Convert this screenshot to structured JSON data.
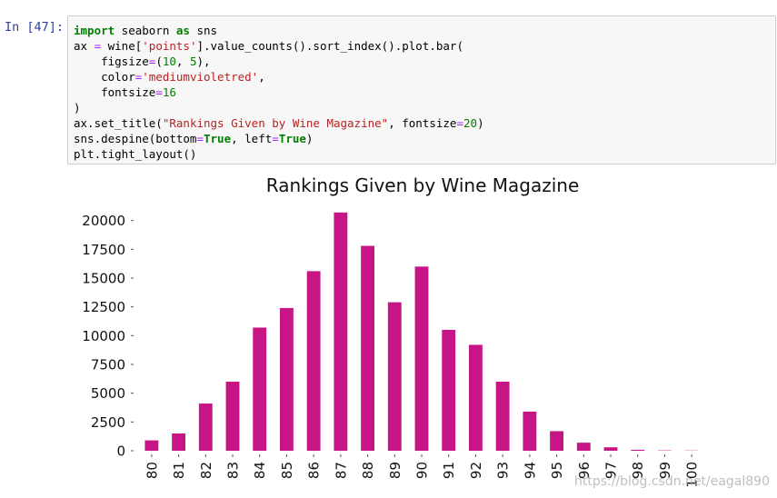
{
  "cell": {
    "prompt": "In [47]:",
    "code_lines": [
      [
        {
          "t": "import",
          "c": "kw"
        },
        {
          "t": " seaborn "
        },
        {
          "t": "as",
          "c": "kw"
        },
        {
          "t": " sns"
        }
      ],
      [
        {
          "t": "ax "
        },
        {
          "t": "=",
          "c": "op"
        },
        {
          "t": " wine["
        },
        {
          "t": "'points'",
          "c": "str"
        },
        {
          "t": "].value_counts().sort_index().plot.bar("
        }
      ],
      [
        {
          "t": "    figsize"
        },
        {
          "t": "=",
          "c": "op"
        },
        {
          "t": "("
        },
        {
          "t": "10",
          "c": "num"
        },
        {
          "t": ", "
        },
        {
          "t": "5",
          "c": "num"
        },
        {
          "t": "),"
        }
      ],
      [
        {
          "t": "    color"
        },
        {
          "t": "=",
          "c": "op"
        },
        {
          "t": "'mediumvioletred'",
          "c": "str"
        },
        {
          "t": ","
        }
      ],
      [
        {
          "t": "    fontsize"
        },
        {
          "t": "=",
          "c": "op"
        },
        {
          "t": "16",
          "c": "num"
        }
      ],
      [
        {
          "t": ")"
        }
      ],
      [
        {
          "t": "ax.set_title("
        },
        {
          "t": "\"Rankings Given by Wine Magazine\"",
          "c": "str"
        },
        {
          "t": ", fontsize"
        },
        {
          "t": "=",
          "c": "op"
        },
        {
          "t": "20",
          "c": "num"
        },
        {
          "t": ")"
        }
      ],
      [
        {
          "t": "sns.despine(bottom"
        },
        {
          "t": "=",
          "c": "op"
        },
        {
          "t": "True",
          "c": "kw"
        },
        {
          "t": ", left"
        },
        {
          "t": "=",
          "c": "op"
        },
        {
          "t": "True",
          "c": "kw"
        },
        {
          "t": ")"
        }
      ],
      [
        {
          "t": "plt.tight_layout()"
        }
      ]
    ]
  },
  "chart_data": {
    "type": "bar",
    "title": "Rankings Given by Wine Magazine",
    "xlabel": "",
    "ylabel": "",
    "categories": [
      "80",
      "81",
      "82",
      "83",
      "84",
      "85",
      "86",
      "87",
      "88",
      "89",
      "90",
      "91",
      "92",
      "93",
      "94",
      "95",
      "96",
      "97",
      "98",
      "99",
      "100"
    ],
    "values": [
      900,
      1500,
      4100,
      6000,
      10700,
      12400,
      15600,
      20700,
      17800,
      12900,
      16000,
      10500,
      9200,
      6000,
      3400,
      1700,
      700,
      300,
      80,
      30,
      20
    ],
    "ylim": [
      0,
      21000
    ],
    "yticks": [
      "0",
      "2500",
      "5000",
      "7500",
      "10000",
      "12500",
      "15000",
      "17500",
      "20000"
    ],
    "bar_color": "#c71585",
    "grid": false,
    "legend": "none"
  },
  "watermark": "https://blog.csdn.net/eagal890"
}
